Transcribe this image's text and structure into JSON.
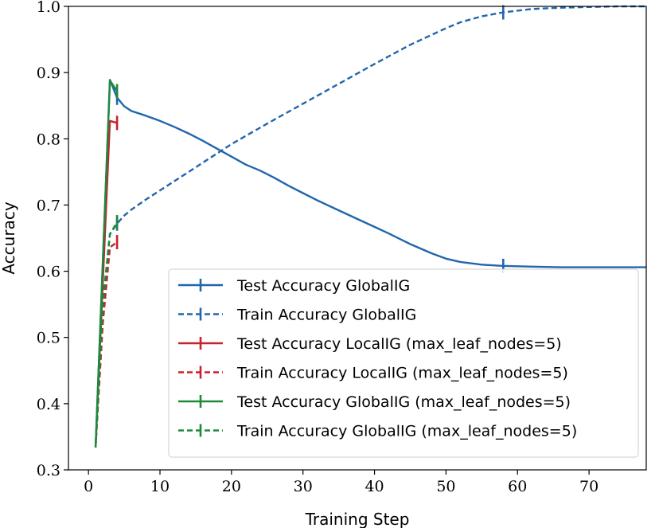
{
  "chart_data": {
    "type": "line",
    "xlabel": "Training Step",
    "ylabel": "Accuracy",
    "xlim": [
      -2.8,
      78
    ],
    "ylim": [
      0.3,
      1.0
    ],
    "x_ticks": [
      0,
      10,
      20,
      30,
      40,
      50,
      60,
      70
    ],
    "y_ticks": [
      0.3,
      0.4,
      0.5,
      0.6,
      0.7,
      0.8,
      0.9,
      1.0
    ],
    "x_tick_labels": [
      "0",
      "10",
      "20",
      "30",
      "40",
      "50",
      "60",
      "70"
    ],
    "y_tick_labels": [
      "0.3",
      "0.4",
      "0.5",
      "0.6",
      "0.7",
      "0.8",
      "0.9",
      "1.0"
    ],
    "grid": false,
    "legend_position": "lower-right",
    "series": [
      {
        "name": "Test Accuracy GlobalIG",
        "color": "#2166ac",
        "style": "solid",
        "marker_at": [
          4,
          58
        ],
        "x": [
          1,
          3,
          4,
          5,
          6,
          8,
          10,
          12,
          14,
          16,
          18,
          20,
          22,
          24,
          26,
          28,
          30,
          32,
          35,
          38,
          40,
          42,
          45,
          48,
          50,
          52,
          55,
          58,
          62,
          66,
          70,
          74,
          78
        ],
        "y": [
          0.334,
          0.889,
          0.862,
          0.849,
          0.842,
          0.835,
          0.827,
          0.818,
          0.808,
          0.797,
          0.785,
          0.773,
          0.761,
          0.752,
          0.741,
          0.729,
          0.718,
          0.707,
          0.692,
          0.677,
          0.667,
          0.657,
          0.641,
          0.627,
          0.619,
          0.614,
          0.61,
          0.608,
          0.607,
          0.606,
          0.606,
          0.606,
          0.606
        ]
      },
      {
        "name": "Train Accuracy GlobalIG",
        "color": "#2166ac",
        "style": "dashed",
        "marker_at": [
          4,
          58
        ],
        "x": [
          1,
          2,
          3,
          4,
          5,
          6,
          8,
          10,
          12,
          14,
          16,
          18,
          20,
          25,
          30,
          35,
          40,
          45,
          50,
          52,
          55,
          58,
          62,
          66,
          70,
          74,
          78
        ],
        "y": [
          0.334,
          0.55,
          0.656,
          0.672,
          0.684,
          0.693,
          0.708,
          0.722,
          0.736,
          0.75,
          0.764,
          0.778,
          0.792,
          0.823,
          0.853,
          0.883,
          0.913,
          0.942,
          0.967,
          0.976,
          0.985,
          0.991,
          0.996,
          0.998,
          0.999,
          1.0,
          1.0
        ]
      },
      {
        "name": "Test Accuracy LocalIG (max_leaf_nodes=5)",
        "color": "#c8222c",
        "style": "solid",
        "marker_at": [
          4
        ],
        "x": [
          1,
          3,
          4
        ],
        "y": [
          0.334,
          0.827,
          0.824
        ]
      },
      {
        "name": "Train Accuracy LocalIG (max_leaf_nodes=5)",
        "color": "#c8222c",
        "style": "dashed",
        "marker_at": [
          4
        ],
        "x": [
          1,
          2,
          3,
          4
        ],
        "y": [
          0.334,
          0.52,
          0.636,
          0.644
        ]
      },
      {
        "name": "Test Accuracy GlobalIG (max_leaf_nodes=5)",
        "color": "#1d8a3b",
        "style": "solid",
        "marker_at": [
          4
        ],
        "x": [
          1,
          3,
          4
        ],
        "y": [
          0.334,
          0.888,
          0.872
        ]
      },
      {
        "name": "Train Accuracy GlobalIG (max_leaf_nodes=5)",
        "color": "#1d8a3b",
        "style": "dashed",
        "marker_at": [
          4
        ],
        "x": [
          1,
          2,
          3,
          4
        ],
        "y": [
          0.334,
          0.55,
          0.656,
          0.674
        ]
      }
    ]
  }
}
